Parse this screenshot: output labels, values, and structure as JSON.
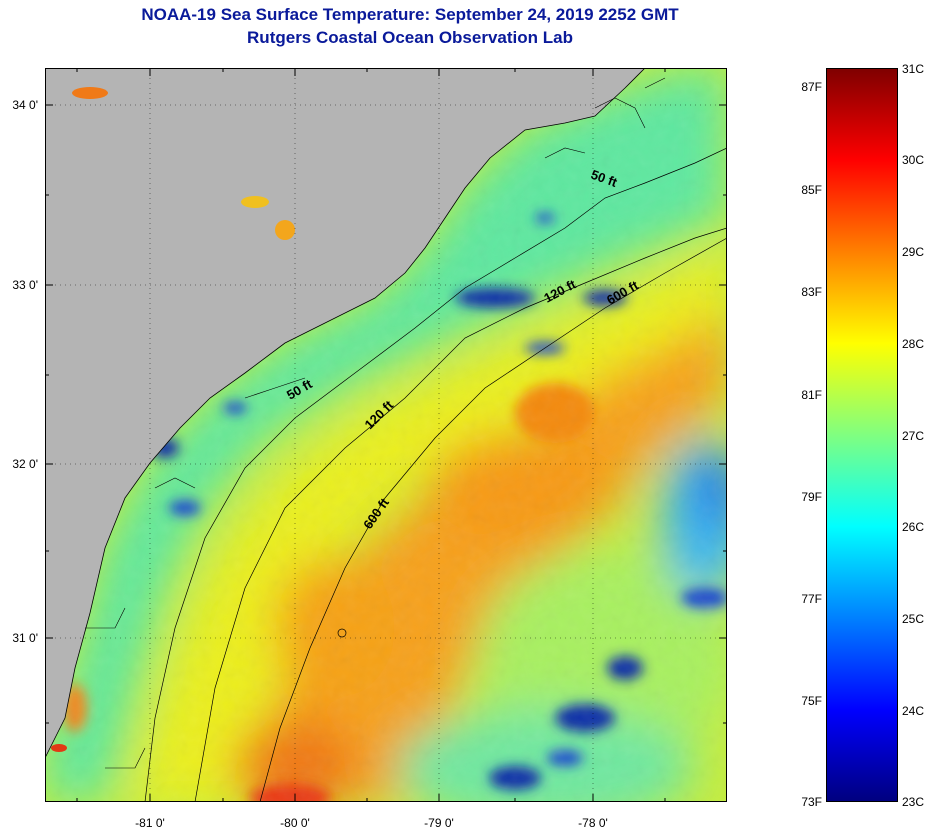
{
  "title": {
    "line1": "NOAA-19 Sea Surface Temperature:  September 24, 2019 2252 GMT",
    "line2": "Rutgers Coastal Ocean Observation Lab"
  },
  "map": {
    "land_color": "#b4b4b4",
    "lat_labels": [
      "34 0'",
      "33 0'",
      "32 0'",
      "31 0'"
    ],
    "lon_labels": [
      "-81 0'",
      "-80 0'",
      "-79 0'",
      "-78 0'"
    ],
    "isobath_labels": [
      "50 ft",
      "120 ft",
      "600 ft",
      "50 ft",
      "120 ft",
      "600 ft"
    ]
  },
  "colorbar": {
    "fahrenheit": [
      "87F",
      "85F",
      "83F",
      "81F",
      "79F",
      "77F",
      "75F",
      "73F"
    ],
    "celsius": [
      "31C",
      "30C",
      "29C",
      "28C",
      "27C",
      "26C",
      "25C",
      "24C",
      "23C"
    ],
    "colors": [
      "#00007f",
      "#0000ff",
      "#0080ff",
      "#00ffff",
      "#80ff80",
      "#ffff00",
      "#ff8000",
      "#ff0000",
      "#7f0000"
    ]
  }
}
